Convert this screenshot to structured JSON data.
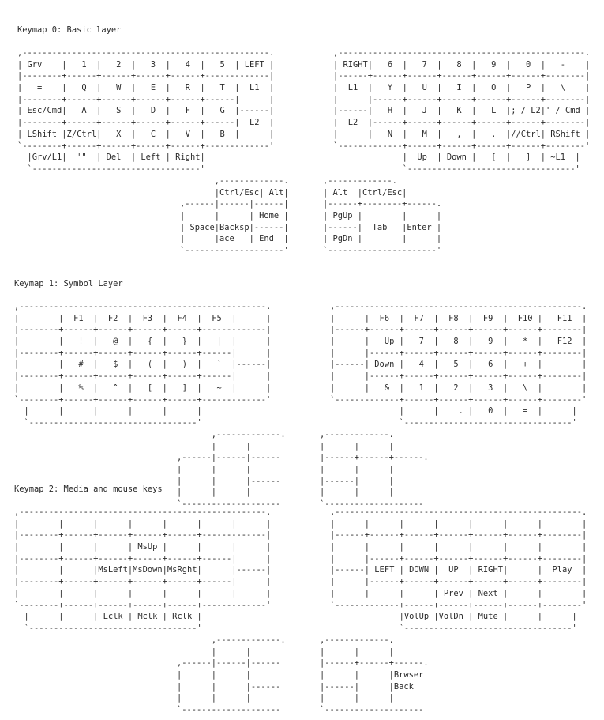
{
  "sections": [
    {
      "title": "Keymap 0: Basic layer",
      "left_hand": [
        ",--------------------------------------------------.",
        "| Grv    |   1  |   2  |   3  |   4  |   5  | LEFT |",
        "|--------+------+------+------+------+-------------|",
        "|   =    |   Q  |   W  |   E  |   R  |   T  |  L1  |",
        "|--------+------+------+------+------+------|      |",
        "| Esc/Cmd|   A  |   S  |   D  |   F  |   G  |------|",
        "|--------+------+------+------+------+------|  L2  |",
        "| LShift |Z/Ctrl|   X  |   C  |   V  |   B  |      |",
        "`--------+------+------+------+------+-------------'",
        "  |Grv/L1|  '\"  | Del  | Left | Right|",
        "  `----------------------------------'"
      ],
      "right_hand": [
        ",--------------------------------------------------.",
        "| RIGHT|   6  |   7  |   8  |   9  |   0  |   -    |",
        "|------+------+------+------+------+------+--------|",
        "|  L1  |   Y  |   U  |   I  |   O  |   P  |   \\    |",
        "|      |------+------+------+------+------+--------|",
        "|------|   H  |   J  |   K  |   L  |; / L2|' / Cmd |",
        "|  L2  |------+------+------+------+------+--------|",
        "|      |   N  |   M  |   ,  |   .  |//Ctrl| RShift |",
        "`-------------+------+------+------+------+--------'",
        "              |  Up  | Down |   [  |   ]  | ~L1  |",
        "              `----------------------------------'"
      ],
      "left_thumb": [
        "       ,-------------.",
        "       |Ctrl/Esc| Alt|",
        ",------|------|------|",
        "|      |      | Home |",
        "| Space|Backsp|------|",
        "|      |ace   | End  |",
        "`--------------------'"
      ],
      "right_thumb": [
        ",-------------.",
        "| Alt  |Ctrl/Esc|",
        "|------+--------+------.",
        "| PgUp |        |      |",
        "|------|  Tab   |Enter |",
        "| PgDn |        |      |",
        "`----------------------'"
      ]
    },
    {
      "title": "Keymap 1: Symbol Layer",
      "left_hand": [
        ",--------------------------------------------------.",
        "|        |  F1  |  F2  |  F3  |  F4  |  F5  |      |",
        "|--------+------+------+------+------+-------------|",
        "|        |   !  |   @  |   {  |   }  |   |  |      |",
        "|--------+------+------+------+------+------|      |",
        "|        |   #  |   $  |   (  |   )  |   `  |------|",
        "|--------+------+------+------+------+------|      |",
        "|        |   %  |   ^  |   [  |   ]  |   ~  |      |",
        "`--------+------+------+------+------+-------------'",
        "  |      |      |      |      |      |",
        "  `----------------------------------'"
      ],
      "right_hand": [
        ",--------------------------------------------------.",
        "|      |  F6  |  F7  |  F8  |  F9  |  F10 |   F11  |",
        "|------+------+------+------+------+------+--------|",
        "|      |   Up |   7  |   8  |   9  |   *  |   F12  |",
        "|      |------+------+------+------+------+--------|",
        "|------| Down |   4  |   5  |   6  |   +  |        |",
        "|      |------+------+------+------+------+--------|",
        "|      |   &  |   1  |   2  |   3  |   \\  |        |",
        "`-------------+------+------+------+------+--------'",
        "              |      |    . |   0  |   =  |      |",
        "              `----------------------------------'"
      ],
      "left_thumb": [
        "       ,-------------.",
        "       |      |      |",
        ",------|------|------|",
        "|      |      |      |",
        "|      |      |------|",
        "|      |      |      |",
        "`--------------------'"
      ],
      "right_thumb": [
        ",-------------.",
        "|      |      |",
        "|------+------+------.",
        "|      |      |      |",
        "|------|      |      |",
        "|      |      |      |",
        "`--------------------'"
      ]
    },
    {
      "title": "Keymap 2: Media and mouse keys",
      "left_hand": [
        ",--------------------------------------------------.",
        "|        |      |      |      |      |      |      |",
        "|--------+------+------+------+------+-------------|",
        "|        |      |      | MsUp |      |      |      |",
        "|--------+------+------+------+------+------|      |",
        "|        |      |MsLeft|MsDown|MsRght|      |------|",
        "|--------+------+------+------+------+------|      |",
        "|        |      |      |      |      |      |      |",
        "`--------+------+------+------+------+-------------'",
        "  |      |      | Lclk | Mclk | Rclk |",
        "  `----------------------------------'"
      ],
      "right_hand": [
        ",--------------------------------------------------.",
        "|      |      |      |      |      |      |        |",
        "|------+------+------+------+------+------+--------|",
        "|      |      |      |      |      |      |        |",
        "|      |------+------+------+------+------+--------|",
        "|------| LEFT | DOWN |  UP  | RIGHT|      |  Play  |",
        "|      |------+------+------+------+------+--------|",
        "|      |      |      | Prev | Next |      |        |",
        "`-------------+------+------+------+------+--------'",
        "              |VolUp |VolDn | Mute |      |      |",
        "              `----------------------------------'"
      ],
      "left_thumb": [
        "       ,-------------.",
        "       |      |      |",
        ",------|------|------|",
        "|      |      |      |",
        "|      |      |------|",
        "|      |      |      |",
        "`--------------------'"
      ],
      "right_thumb": [
        ",-------------.",
        "|      |      |",
        "|------+------+------.",
        "|      |      |Brwser|",
        "|------|      |Back  |",
        "|      |      |      |",
        "`--------------------'"
      ]
    }
  ]
}
